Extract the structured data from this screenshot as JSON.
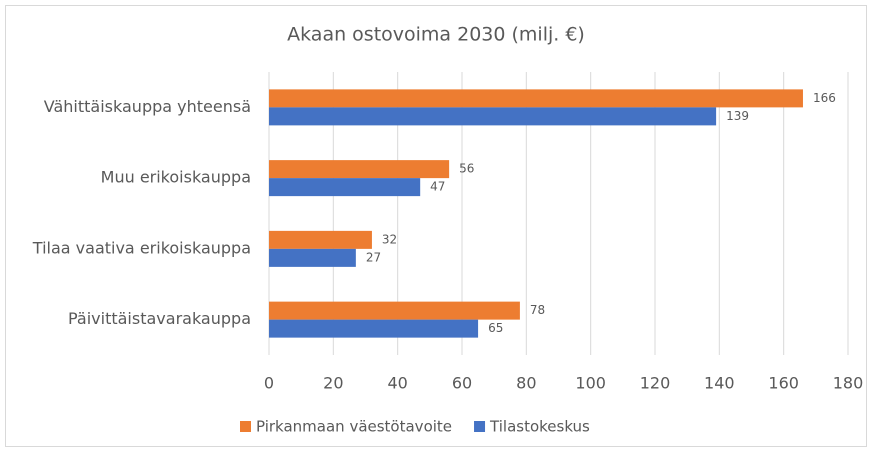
{
  "chart_data": {
    "type": "barh",
    "title": "Akaan ostovoima 2030 (milj. €)",
    "categories": [
      "Vähittäiskauppa yhteensä",
      "Muu erikoiskauppa",
      "Tilaa vaativa erikoiskauppa",
      "Päivittäistavarakauppa"
    ],
    "series": [
      {
        "name": "Pirkanmaan väestötavoite",
        "color": "#ed7d31",
        "values": [
          166,
          56,
          32,
          78
        ]
      },
      {
        "name": "Tilastokeskus",
        "color": "#4472c4",
        "values": [
          139,
          47,
          27,
          65
        ]
      }
    ],
    "xlim": [
      0,
      180
    ],
    "xticks": [
      0,
      20,
      40,
      60,
      80,
      100,
      120,
      140,
      160,
      180
    ],
    "grid": true,
    "legend": "bottom"
  }
}
